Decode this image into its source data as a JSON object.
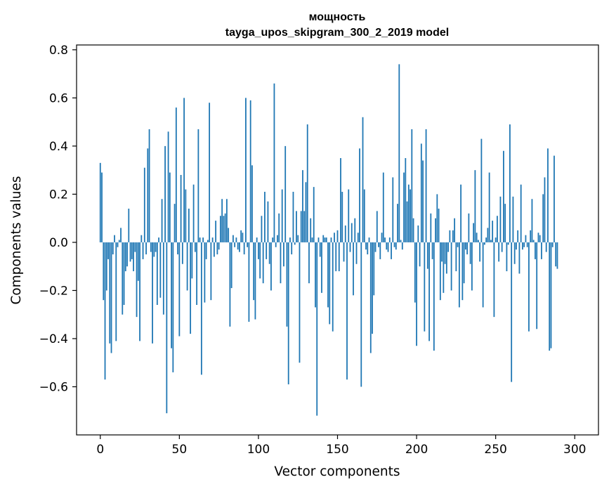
{
  "chart_data": {
    "type": "bar",
    "title_line1": "мощность",
    "title_line2": "tayga_upos_skipgram_300_2_2019 model",
    "xlabel": "Vector components",
    "ylabel": "Components values",
    "xlim": [
      -15,
      315
    ],
    "ylim": [
      -0.8,
      0.82
    ],
    "xticks": [
      0,
      50,
      100,
      150,
      200,
      250,
      300
    ],
    "xtick_labels": [
      "0",
      "50",
      "100",
      "150",
      "200",
      "250",
      "300"
    ],
    "yticks": [
      -0.6,
      -0.4,
      -0.2,
      0.0,
      0.2,
      0.4,
      0.6,
      0.8
    ],
    "ytick_labels": [
      "−0.6",
      "−0.4",
      "−0.2",
      "0.0",
      "0.2",
      "0.4",
      "0.6",
      "0.8"
    ],
    "grid": false,
    "color": "#1f77b4",
    "values": [
      0.33,
      0.29,
      -0.24,
      -0.57,
      -0.2,
      -0.07,
      -0.42,
      -0.46,
      -0.05,
      0.03,
      -0.41,
      -0.02,
      0.01,
      0.06,
      -0.3,
      -0.26,
      -0.12,
      -0.1,
      0.14,
      -0.08,
      -0.07,
      -0.12,
      -0.04,
      -0.31,
      -0.16,
      -0.41,
      0.03,
      -0.07,
      0.31,
      -0.05,
      0.39,
      0.47,
      -0.04,
      -0.42,
      -0.06,
      -0.04,
      -0.26,
      0.02,
      -0.23,
      0.18,
      -0.3,
      0.4,
      -0.71,
      0.46,
      0.29,
      -0.44,
      -0.54,
      0.16,
      0.56,
      -0.05,
      -0.39,
      0.28,
      -0.09,
      0.6,
      0.22,
      -0.2,
      0.14,
      -0.38,
      -0.15,
      0.24,
      -0.04,
      -0.26,
      0.47,
      0.02,
      -0.55,
      0.02,
      -0.25,
      -0.07,
      0.01,
      0.58,
      -0.24,
      0.02,
      -0.06,
      0.09,
      -0.05,
      -0.03,
      0.11,
      0.18,
      0.11,
      0.12,
      0.18,
      0.06,
      -0.35,
      -0.19,
      0.03,
      -0.02,
      0.02,
      -0.03,
      -0.04,
      0.05,
      0.04,
      -0.05,
      0.6,
      -0.02,
      -0.33,
      0.59,
      0.32,
      -0.24,
      -0.32,
      0.02,
      -0.07,
      -0.15,
      0.11,
      -0.17,
      0.21,
      -0.07,
      0.17,
      -0.09,
      -0.2,
      0.02,
      0.66,
      -0.02,
      0.03,
      0.12,
      -0.17,
      0.22,
      -0.1,
      0.4,
      -0.35,
      -0.59,
      0.02,
      -0.05,
      0.21,
      -0.01,
      0.13,
      0.03,
      -0.5,
      0.13,
      0.3,
      0.13,
      0.25,
      0.49,
      -0.17,
      0.1,
      0.02,
      0.23,
      -0.27,
      -0.72,
      0.02,
      -0.06,
      -0.21,
      0.03,
      0.02,
      0.02,
      -0.27,
      -0.34,
      0.02,
      -0.37,
      0.04,
      -0.12,
      0.05,
      -0.12,
      0.35,
      0.21,
      -0.08,
      0.07,
      -0.57,
      0.22,
      -0.04,
      0.08,
      -0.22,
      0.1,
      -0.09,
      0.04,
      0.39,
      -0.6,
      0.52,
      0.22,
      -0.03,
      -0.05,
      0.02,
      -0.46,
      -0.38,
      -0.22,
      -0.04,
      0.13,
      -0.02,
      -0.07,
      0.04,
      0.29,
      0.02,
      -0.03,
      -0.04,
      0.02,
      -0.07,
      0.27,
      -0.02,
      -0.03,
      0.16,
      0.74,
      0.01,
      -0.03,
      0.29,
      0.35,
      0.17,
      0.24,
      0.22,
      0.47,
      0.1,
      -0.25,
      -0.43,
      0.07,
      -0.1,
      0.41,
      0.34,
      -0.37,
      0.47,
      -0.11,
      -0.41,
      0.12,
      -0.07,
      -0.45,
      0.1,
      0.2,
      0.14,
      -0.24,
      -0.08,
      -0.21,
      -0.09,
      -0.13,
      -0.04,
      0.05,
      -0.2,
      0.05,
      0.1,
      -0.12,
      -0.02,
      -0.27,
      0.24,
      -0.24,
      -0.17,
      -0.03,
      -0.05,
      0.12,
      -0.09,
      -0.2,
      0.08,
      0.3,
      0.04,
      0.01,
      -0.08,
      0.43,
      -0.27,
      -0.01,
      0.02,
      0.06,
      0.29,
      0.01,
      0.09,
      -0.31,
      0.02,
      0.11,
      -0.08,
      0.19,
      -0.04,
      0.38,
      0.16,
      -0.12,
      -0.01,
      0.49,
      -0.58,
      0.19,
      -0.09,
      -0.03,
      0.05,
      -0.13,
      0.24,
      -0.03,
      -0.02,
      0.03,
      -0.02,
      -0.37,
      0.05,
      0.18,
      0.01,
      -0.07,
      -0.36,
      0.04,
      0.03,
      -0.07,
      0.2,
      0.27,
      -0.04,
      0.39,
      -0.45,
      -0.44,
      -0.02,
      0.36,
      -0.1,
      -0.11
    ]
  }
}
